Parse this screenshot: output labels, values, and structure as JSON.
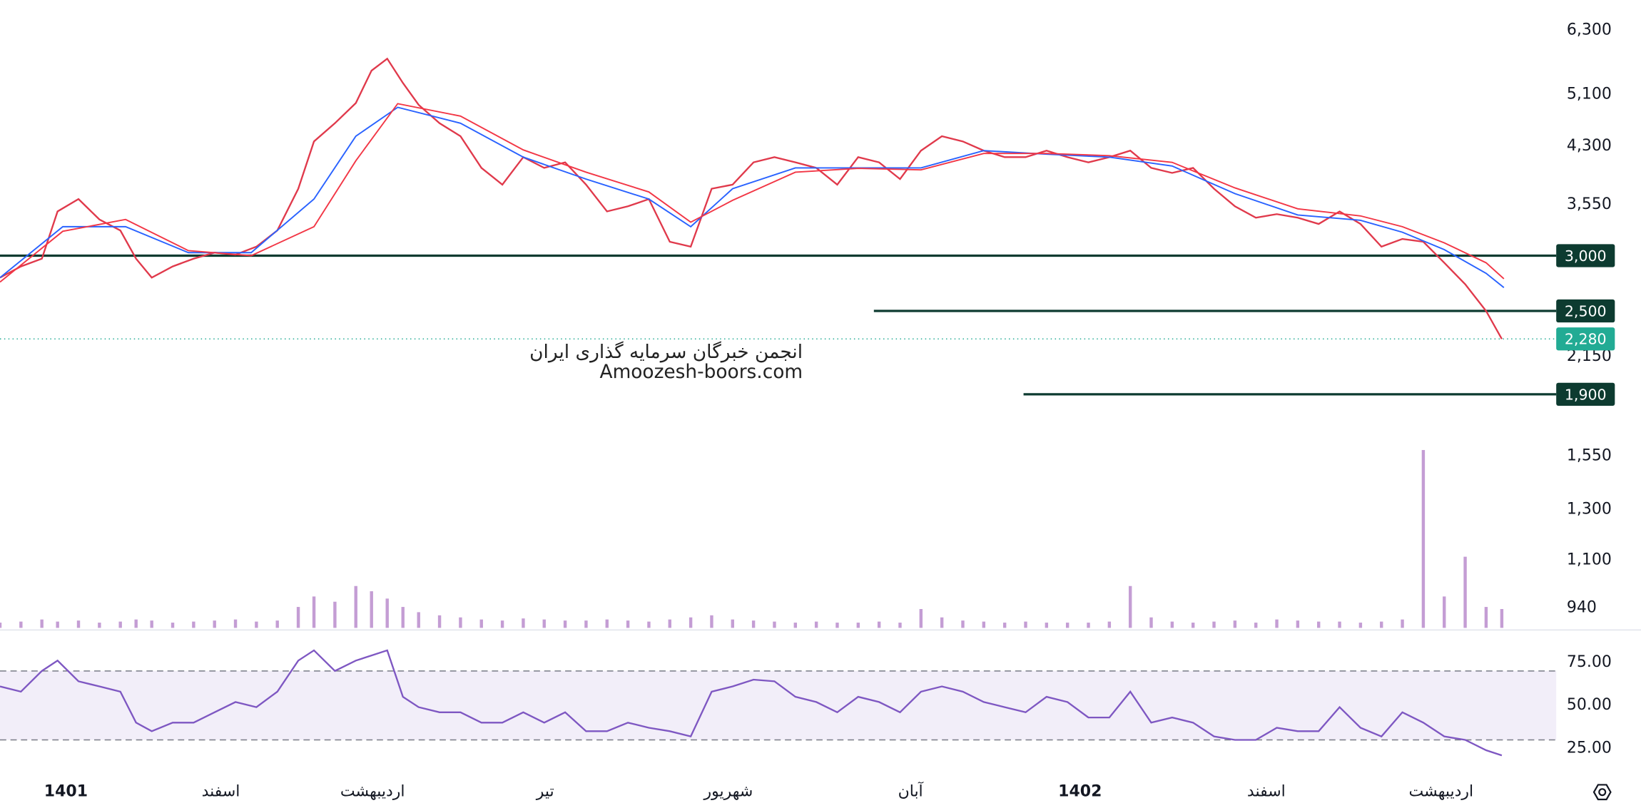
{
  "watermark": {
    "line1": "انجمن خبرگان سرمایه گذاری ایران",
    "line2": "Amoozesh-boors.com"
  },
  "chart_data": [
    {
      "type": "line",
      "log_scale": true,
      "xlim": [
        0,
        313.6
      ],
      "ylim": [
        880,
        6960
      ],
      "yticks": [
        {
          "value": 6300,
          "label": "6,300"
        },
        {
          "value": 5100,
          "label": "5,100"
        },
        {
          "value": 4300,
          "label": "4,300"
        },
        {
          "value": 3550,
          "label": "3,550"
        },
        {
          "value": 2150,
          "label": "2,150"
        },
        {
          "value": 1550,
          "label": "1,550"
        },
        {
          "value": 1300,
          "label": "1,300"
        },
        {
          "value": 1100,
          "label": "1,100"
        },
        {
          "value": 940,
          "label": "940"
        }
      ],
      "levels": [
        {
          "value": 3000,
          "label": "3,000",
          "start": 0
        },
        {
          "value": 2500,
          "label": "2,500",
          "start": 167
        },
        {
          "value": 1900,
          "label": "1,900",
          "start": 195.6
        }
      ],
      "last_price": {
        "value": 2280,
        "label": "2,280",
        "color": "#22ab94"
      },
      "level_color": "#0d3b30",
      "series": [
        {
          "color": "#e0394b",
          "x": [
            0,
            4,
            8,
            11,
            15,
            19,
            23,
            26,
            29,
            33,
            37,
            41,
            45,
            49,
            53,
            57,
            60,
            64,
            68,
            71,
            74,
            77,
            80,
            84,
            88,
            92,
            96,
            100,
            104,
            108,
            112,
            116,
            120,
            124,
            128,
            132,
            136,
            140,
            144,
            148,
            152,
            156,
            160,
            164,
            168,
            172,
            176,
            180,
            184,
            188,
            192,
            196,
            200,
            204,
            208,
            212,
            216,
            220,
            224,
            228,
            232,
            236,
            240,
            244,
            248,
            252,
            256,
            260,
            264,
            268,
            272,
            276,
            280,
            284,
            287
          ],
          "values": [
            2790,
            2895,
            2970,
            3470,
            3615,
            3380,
            3260,
            2970,
            2790,
            2895,
            2970,
            3030,
            3010,
            3090,
            3260,
            3740,
            4370,
            4640,
            4960,
            5520,
            5740,
            5300,
            4930,
            4640,
            4446,
            4006,
            3790,
            4150,
            4006,
            4080,
            3790,
            3470,
            3530,
            3615,
            3140,
            3090,
            3740,
            3790,
            4080,
            4150,
            4080,
            4006,
            3790,
            4150,
            4080,
            3860,
            4240,
            4446,
            4370,
            4240,
            4150,
            4150,
            4240,
            4150,
            4080,
            4150,
            4240,
            4006,
            3940,
            4006,
            3740,
            3530,
            3400,
            3440,
            3400,
            3330,
            3470,
            3330,
            3090,
            3170,
            3140,
            2930,
            2730,
            2500,
            2280
          ]
        },
        {
          "color": "#2962ff",
          "x": [
            0,
            12,
            24,
            36,
            48,
            60,
            68,
            76,
            88,
            100,
            112,
            124,
            132,
            140,
            152,
            164,
            176,
            188,
            200,
            212,
            224,
            236,
            248,
            260,
            268,
            276,
            284,
            287.4
          ],
          "values": [
            2790,
            3300,
            3300,
            3030,
            3030,
            3615,
            4446,
            4890,
            4640,
            4150,
            3860,
            3615,
            3300,
            3740,
            4006,
            4006,
            4006,
            4240,
            4190,
            4150,
            4030,
            3680,
            3430,
            3370,
            3240,
            3060,
            2830,
            2700
          ]
        },
        {
          "color": "#f23645",
          "x": [
            0,
            12,
            24,
            36,
            48,
            60,
            68,
            76,
            88,
            100,
            112,
            124,
            132,
            140,
            152,
            164,
            176,
            188,
            200,
            212,
            224,
            236,
            248,
            260,
            268,
            276,
            284,
            287.4
          ],
          "values": [
            2750,
            3250,
            3380,
            3050,
            3000,
            3300,
            4100,
            4950,
            4750,
            4250,
            3950,
            3700,
            3350,
            3600,
            3950,
            4000,
            3980,
            4200,
            4200,
            4170,
            4080,
            3750,
            3500,
            3420,
            3300,
            3130,
            2930,
            2780
          ]
        }
      ]
    },
    {
      "type": "bar",
      "xlim": [
        0,
        313.6
      ],
      "ylim": [
        0,
        180
      ],
      "color": "#b07cc6",
      "x": [
        0,
        4,
        8,
        11,
        15,
        19,
        23,
        26,
        29,
        33,
        37,
        41,
        45,
        49,
        53,
        57,
        60,
        64,
        68,
        71,
        74,
        77,
        80,
        84,
        88,
        92,
        96,
        100,
        104,
        108,
        112,
        116,
        120,
        124,
        128,
        132,
        136,
        140,
        144,
        148,
        152,
        156,
        160,
        164,
        168,
        172,
        176,
        180,
        184,
        188,
        192,
        196,
        200,
        204,
        208,
        212,
        216,
        220,
        224,
        228,
        232,
        236,
        240,
        244,
        248,
        252,
        256,
        260,
        264,
        268,
        272,
        276,
        280,
        284,
        287
      ],
      "values": [
        5,
        6,
        8,
        6,
        7,
        5,
        6,
        8,
        7,
        5,
        6,
        7,
        8,
        6,
        7,
        20,
        30,
        25,
        40,
        35,
        28,
        20,
        15,
        12,
        10,
        8,
        7,
        9,
        8,
        7,
        7,
        8,
        7,
        6,
        8,
        10,
        12,
        8,
        7,
        6,
        5,
        6,
        5,
        5,
        6,
        5,
        18,
        10,
        7,
        6,
        5,
        6,
        5,
        5,
        5,
        6,
        40,
        10,
        6,
        5,
        6,
        7,
        5,
        8,
        7,
        6,
        6,
        5,
        6,
        8,
        170,
        30,
        68,
        20,
        18
      ]
    },
    {
      "type": "line",
      "xlim": [
        0,
        313.6
      ],
      "ylim": [
        10,
        92
      ],
      "yticks": [
        {
          "value": 75,
          "label": "75.00"
        },
        {
          "value": 50,
          "label": "50.00"
        },
        {
          "value": 25,
          "label": "25.00"
        }
      ],
      "bands": [
        30,
        70
      ],
      "xticks": [
        {
          "value": 12.6,
          "label": "1401"
        },
        {
          "value": 42.2,
          "label": "اسفند"
        },
        {
          "value": 71.2,
          "label": "اردیبهشت"
        },
        {
          "value": 104.2,
          "label": "تیر"
        },
        {
          "value": 139.2,
          "label": "شهریور"
        },
        {
          "value": 174,
          "label": "آبان"
        },
        {
          "value": 206.4,
          "label": "1402"
        },
        {
          "value": 242,
          "label": "اسفند"
        },
        {
          "value": 275.4,
          "label": "اردیبهشت"
        }
      ],
      "series": [
        {
          "color": "#7e57c2",
          "x": [
            0,
            4,
            8,
            11,
            15,
            19,
            23,
            26,
            29,
            33,
            37,
            41,
            45,
            49,
            53,
            57,
            60,
            64,
            68,
            71,
            74,
            77,
            80,
            84,
            88,
            92,
            96,
            100,
            104,
            108,
            112,
            116,
            120,
            124,
            128,
            132,
            136,
            140,
            144,
            148,
            152,
            156,
            160,
            164,
            168,
            172,
            176,
            180,
            184,
            188,
            192,
            196,
            200,
            204,
            208,
            212,
            216,
            220,
            224,
            228,
            232,
            236,
            240,
            244,
            248,
            252,
            256,
            260,
            264,
            268,
            272,
            276,
            280,
            284,
            287
          ],
          "values": [
            61,
            58,
            70,
            76,
            64,
            61,
            58,
            40,
            35,
            40,
            40,
            46,
            52,
            49,
            58,
            76,
            82,
            70,
            76,
            79,
            82,
            55,
            49,
            46,
            46,
            40,
            40,
            46,
            40,
            46,
            35,
            35,
            40,
            37,
            35,
            32,
            58,
            61,
            65,
            64,
            55,
            52,
            46,
            55,
            52,
            46,
            58,
            61,
            58,
            52,
            49,
            46,
            55,
            52,
            43,
            43,
            58,
            40,
            43,
            40,
            32,
            30,
            30,
            37,
            35,
            35,
            49,
            37,
            32,
            46,
            40,
            32,
            30,
            24,
            21
          ]
        }
      ]
    }
  ]
}
